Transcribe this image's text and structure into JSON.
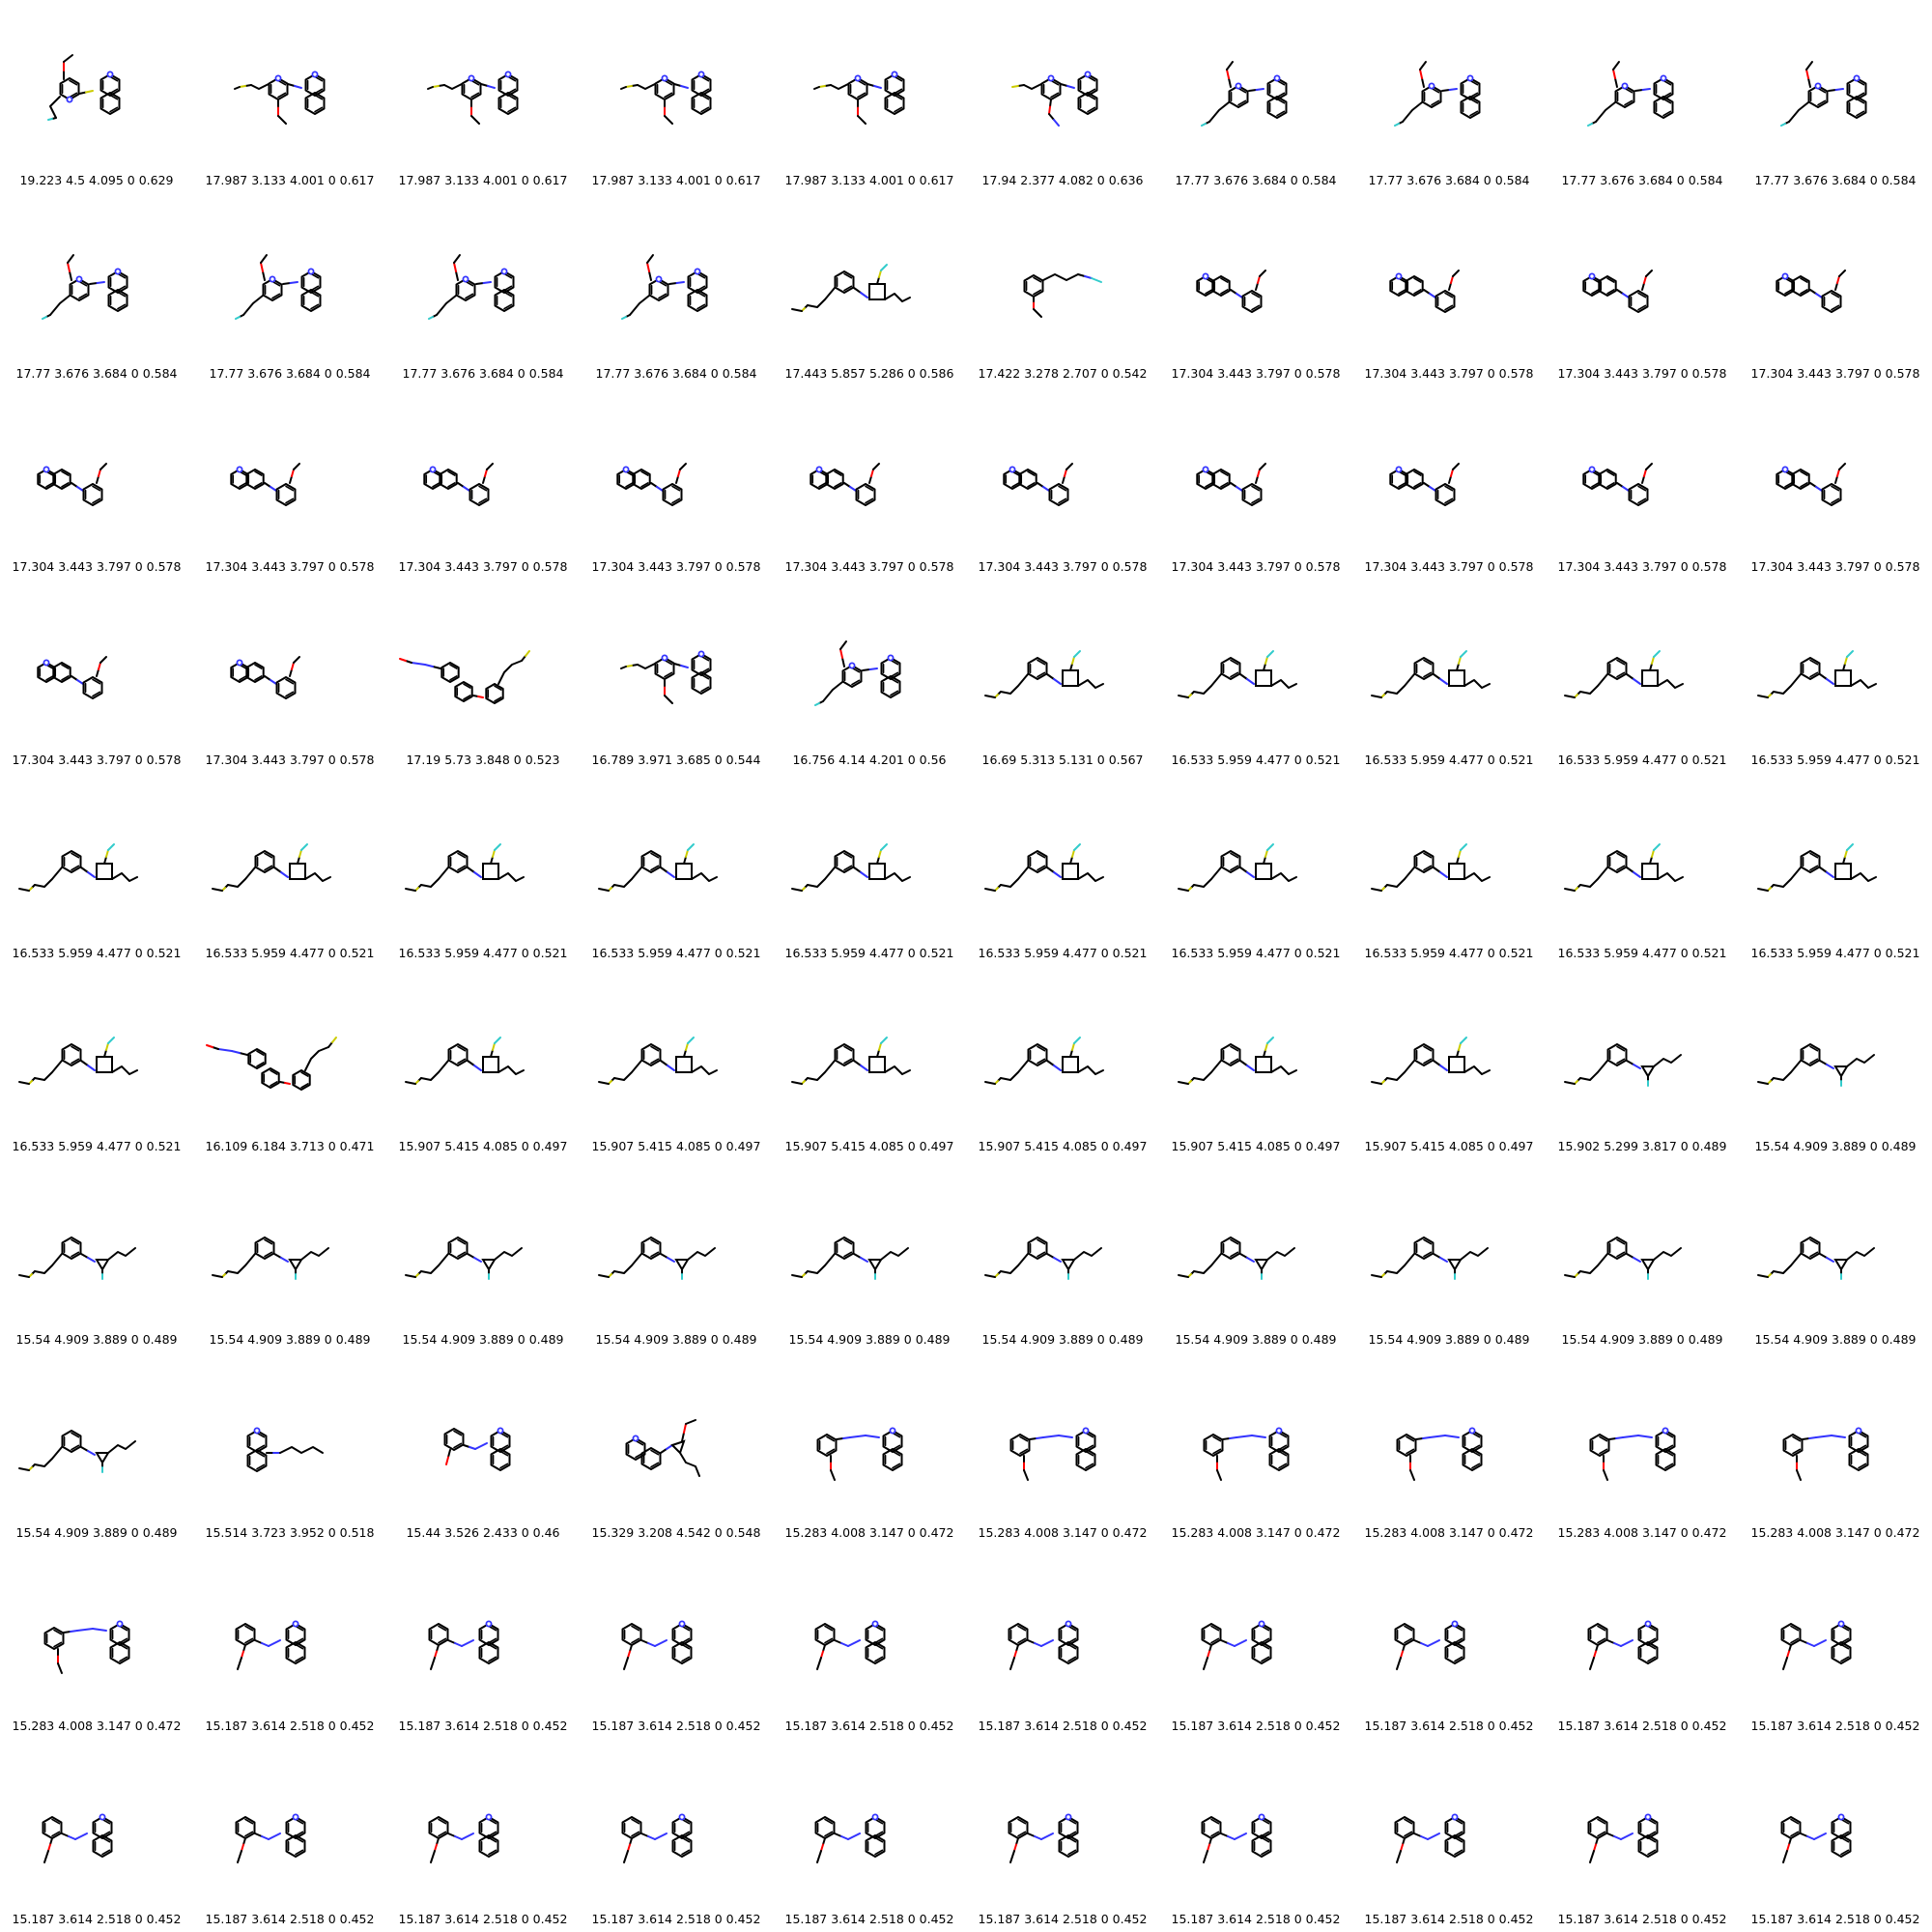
{
  "grid": {
    "captions": [
      "19.223 4.5 4.095 0 0.629",
      "17.987 3.133 4.001 0 0.617",
      "17.987 3.133 4.001 0 0.617",
      "17.987 3.133 4.001 0 0.617",
      "17.987 3.133 4.001 0 0.617",
      "17.94 2.377 4.082 0 0.636",
      "17.77 3.676 3.684 0 0.584",
      "17.77 3.676 3.684 0 0.584",
      "17.77 3.676 3.684 0 0.584",
      "17.77 3.676 3.684 0 0.584",
      "17.77 3.676 3.684 0 0.584",
      "17.77 3.676 3.684 0 0.584",
      "17.77 3.676 3.684 0 0.584",
      "17.77 3.676 3.684 0 0.584",
      "17.443 5.857 5.286 0 0.586",
      "17.422 3.278 2.707 0 0.542",
      "17.304 3.443 3.797 0 0.578",
      "17.304 3.443 3.797 0 0.578",
      "17.304 3.443 3.797 0 0.578",
      "17.304 3.443 3.797 0 0.578",
      "17.304 3.443 3.797 0 0.578",
      "17.304 3.443 3.797 0 0.578",
      "17.304 3.443 3.797 0 0.578",
      "17.304 3.443 3.797 0 0.578",
      "17.304 3.443 3.797 0 0.578",
      "17.304 3.443 3.797 0 0.578",
      "17.304 3.443 3.797 0 0.578",
      "17.304 3.443 3.797 0 0.578",
      "17.304 3.443 3.797 0 0.578",
      "17.304 3.443 3.797 0 0.578",
      "17.304 3.443 3.797 0 0.578",
      "17.304 3.443 3.797 0 0.578",
      "17.19 5.73 3.848 0 0.523",
      "16.789 3.971 3.685 0 0.544",
      "16.756 4.14 4.201 0 0.56",
      "16.69 5.313 5.131 0 0.567",
      "16.533 5.959 4.477 0 0.521",
      "16.533 5.959 4.477 0 0.521",
      "16.533 5.959 4.477 0 0.521",
      "16.533 5.959 4.477 0 0.521",
      "16.533 5.959 4.477 0 0.521",
      "16.533 5.959 4.477 0 0.521",
      "16.533 5.959 4.477 0 0.521",
      "16.533 5.959 4.477 0 0.521",
      "16.533 5.959 4.477 0 0.521",
      "16.533 5.959 4.477 0 0.521",
      "16.533 5.959 4.477 0 0.521",
      "16.533 5.959 4.477 0 0.521",
      "16.533 5.959 4.477 0 0.521",
      "16.533 5.959 4.477 0 0.521",
      "16.533 5.959 4.477 0 0.521",
      "16.109 6.184 3.713 0 0.471",
      "15.907 5.415 4.085 0 0.497",
      "15.907 5.415 4.085 0 0.497",
      "15.907 5.415 4.085 0 0.497",
      "15.907 5.415 4.085 0 0.497",
      "15.907 5.415 4.085 0 0.497",
      "15.907 5.415 4.085 0 0.497",
      "15.902 5.299 3.817 0 0.489",
      "15.54 4.909 3.889 0 0.489",
      "15.54 4.909 3.889 0 0.489",
      "15.54 4.909 3.889 0 0.489",
      "15.54 4.909 3.889 0 0.489",
      "15.54 4.909 3.889 0 0.489",
      "15.54 4.909 3.889 0 0.489",
      "15.54 4.909 3.889 0 0.489",
      "15.54 4.909 3.889 0 0.489",
      "15.54 4.909 3.889 0 0.489",
      "15.54 4.909 3.889 0 0.489",
      "15.54 4.909 3.889 0 0.489",
      "15.54 4.909 3.889 0 0.489",
      "15.514 3.723 3.952 0 0.518",
      "15.44 3.526 2.433 0 0.46",
      "15.329 3.208 4.542 0 0.548",
      "15.283 4.008 3.147 0 0.472",
      "15.283 4.008 3.147 0 0.472",
      "15.283 4.008 3.147 0 0.472",
      "15.283 4.008 3.147 0 0.472",
      "15.283 4.008 3.147 0 0.472",
      "15.283 4.008 3.147 0 0.472",
      "15.283 4.008 3.147 0 0.472",
      "15.187 3.614 2.518 0 0.452",
      "15.187 3.614 2.518 0 0.452",
      "15.187 3.614 2.518 0 0.452",
      "15.187 3.614 2.518 0 0.452",
      "15.187 3.614 2.518 0 0.452",
      "15.187 3.614 2.518 0 0.452",
      "15.187 3.614 2.518 0 0.452",
      "15.187 3.614 2.518 0 0.452",
      "15.187 3.614 2.518 0 0.452",
      "15.187 3.614 2.518 0 0.452",
      "15.187 3.614 2.518 0 0.452",
      "15.187 3.614 2.518 0 0.452",
      "15.187 3.614 2.518 0 0.452",
      "15.187 3.614 2.518 0 0.452",
      "15.187 3.614 2.518 0 0.452",
      "15.187 3.614 2.518 0 0.452",
      "15.187 3.614 2.518 0 0.452",
      "15.187 3.614 2.518 0 0.452",
      "15.187 3.614 2.518 0 0.452"
    ],
    "structures": [
      "methoxy-pyrimidine-thio-isoquinoline",
      "thio-methoxy-pyrimidine-isoquinoline",
      "thio-methoxy-pyrimidine-isoquinoline",
      "thio-methoxy-pyrimidine-isoquinoline",
      "thio-methoxy-pyrimidine-isoquinoline",
      "thio-aminoxy-pyrimidine-isoquinoline",
      "methoxy-pyrimidine-isoquinoline",
      "methoxy-pyrimidine-isoquinoline",
      "methoxy-pyrimidine-isoquinoline",
      "methoxy-pyrimidine-isoquinoline",
      "methoxy-pyrimidine-isoquinoline",
      "methoxy-pyrimidine-isoquinoline",
      "methoxy-pyrimidine-isoquinoline",
      "methoxy-pyrimidine-isoquinoline",
      "cyclobutyl-imine-aryl",
      "aryl-ether-chain",
      "fused-tricycle-methoxyphenyl",
      "fused-tricycle-methoxyphenyl",
      "fused-tricycle-methoxyphenyl",
      "fused-tricycle-methoxyphenyl",
      "fused-tricycle-methoxyphenyl",
      "fused-tricycle-methoxyphenyl",
      "fused-tricycle-methoxyphenyl",
      "fused-tricycle-methoxyphenyl",
      "fused-tricycle-methoxyphenyl",
      "fused-tricycle-methoxyphenyl",
      "fused-tricycle-methoxyphenyl",
      "fused-tricycle-methoxyphenyl",
      "fused-tricycle-methoxyphenyl",
      "fused-tricycle-methoxyphenyl",
      "fused-tricycle-methoxyphenyl",
      "fused-tricycle-methoxyphenyl",
      "biaryl-azo-chain",
      "thio-methoxy-pyrimidine-isoquinoline",
      "methoxy-pyrimidine-isoquinoline",
      "cyclobutyl-imine-aryl",
      "cyclobutyl-imine-aryl",
      "cyclobutyl-imine-aryl",
      "cyclobutyl-imine-aryl",
      "cyclobutyl-imine-aryl",
      "cyclobutyl-imine-aryl",
      "cyclobutyl-imine-aryl",
      "cyclobutyl-imine-aryl",
      "cyclobutyl-imine-aryl",
      "cyclobutyl-imine-aryl",
      "cyclobutyl-imine-aryl",
      "cyclobutyl-imine-aryl",
      "cyclobutyl-imine-aryl",
      "cyclobutyl-imine-aryl",
      "cyclobutyl-imine-aryl",
      "cyclobutyl-imine-aryl",
      "biaryl-azo-chain",
      "cyclobutyl-imine-aryl",
      "cyclobutyl-imine-aryl",
      "cyclobutyl-imine-aryl",
      "cyclobutyl-imine-aryl",
      "cyclobutyl-imine-aryl",
      "cyclobutyl-imine-aryl",
      "cyclopropyl-imine-aryl",
      "cyclopropyl-imine-aryl",
      "cyclopropyl-imine-aryl",
      "cyclopropyl-imine-aryl",
      "cyclopropyl-imine-aryl",
      "cyclopropyl-imine-aryl",
      "cyclopropyl-imine-aryl",
      "cyclopropyl-imine-aryl",
      "cyclopropyl-imine-aryl",
      "cyclopropyl-imine-aryl",
      "cyclopropyl-imine-aryl",
      "cyclopropyl-imine-aryl",
      "cyclopropyl-imine-aryl",
      "fused-tricycle-imine-chain",
      "hydroxyphenyl-azo-isoquinoline",
      "indole-azirine",
      "methoxyphenyl-triazene-isoquinoline",
      "methoxyphenyl-triazene-isoquinoline",
      "methoxyphenyl-triazene-isoquinoline",
      "methoxyphenyl-triazene-isoquinoline",
      "methoxyphenyl-triazene-isoquinoline",
      "methoxyphenyl-triazene-isoquinoline",
      "methoxyphenyl-triazene-isoquinoline",
      "methoxyphenyl-azo-isoquinoline",
      "methoxyphenyl-azo-isoquinoline",
      "methoxyphenyl-azo-isoquinoline",
      "methoxyphenyl-azo-isoquinoline",
      "methoxyphenyl-azo-isoquinoline",
      "methoxyphenyl-azo-isoquinoline",
      "methoxyphenyl-azo-isoquinoline",
      "methoxyphenyl-azo-isoquinoline",
      "methoxyphenyl-azo-isoquinoline",
      "methoxyphenyl-azo-isoquinoline",
      "methoxyphenyl-azo-isoquinoline",
      "methoxyphenyl-azo-isoquinoline",
      "methoxyphenyl-azo-isoquinoline",
      "methoxyphenyl-azo-isoquinoline",
      "methoxyphenyl-azo-isoquinoline",
      "methoxyphenyl-azo-isoquinoline",
      "methoxyphenyl-azo-isoquinoline",
      "methoxyphenyl-azo-isoquinoline",
      "methoxyphenyl-azo-isoquinoline"
    ]
  },
  "colors": {
    "bond": "#000000",
    "nitrogen": "#3333ff",
    "oxygen": "#ff0000",
    "sulfur": "#cccc00",
    "fluorine": "#33cccc",
    "background": "#ffffff"
  }
}
